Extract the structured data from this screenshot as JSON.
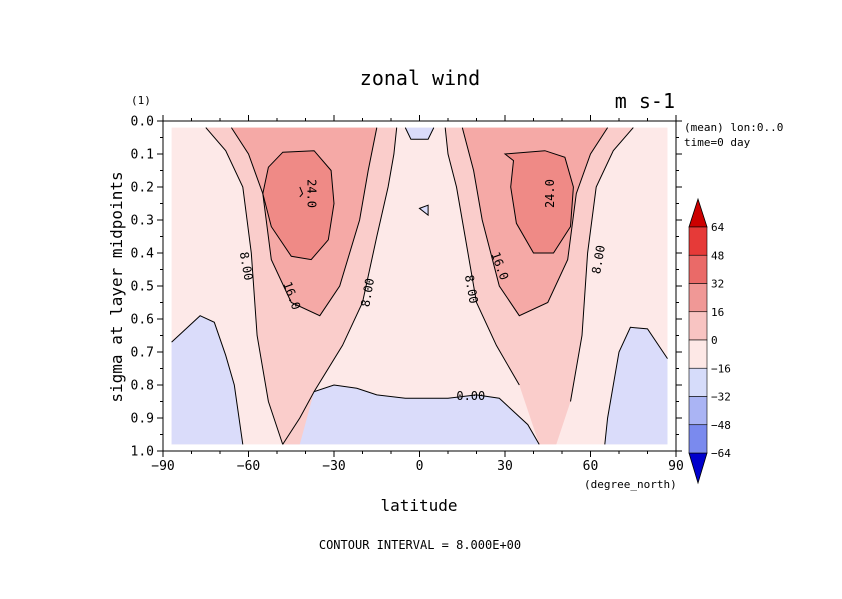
{
  "chart_data": {
    "type": "contour",
    "title": "zonal wind",
    "units": "m s-1",
    "y_unit_label": "(1)",
    "xlabel": "latitude",
    "x_unit_label": "(degree_north)",
    "ylabel": "sigma at layer midpoints",
    "annotations": [
      "(mean) lon:0..0",
      "time=0 day"
    ],
    "contour_interval_text": "CONTOUR INTERVAL = 8.000E+00",
    "xlim": [
      -90,
      90
    ],
    "ylim": [
      0.0,
      1.0
    ],
    "y_inverted": true,
    "x_ticks": [
      -90,
      -60,
      -30,
      0,
      30,
      60,
      90
    ],
    "x_tick_labels": [
      "−90",
      "−60",
      "−30",
      "0",
      "30",
      "60",
      "90"
    ],
    "y_ticks": [
      0.0,
      0.1,
      0.2,
      0.3,
      0.4,
      0.5,
      0.6,
      0.7,
      0.8,
      0.9,
      1.0
    ],
    "y_tick_labels": [
      "0.0",
      "0.1",
      "0.2",
      "0.3",
      "0.4",
      "0.5",
      "0.6",
      "0.7",
      "0.8",
      "0.9",
      "1.0"
    ],
    "data_x_range": [
      -87,
      87
    ],
    "data_y_range": [
      0.02,
      0.98
    ],
    "contour_labels": [
      {
        "text": "24.0",
        "lat": -38,
        "sigma": 0.22,
        "rotate": 90
      },
      {
        "text": "8.00",
        "lat": -61,
        "sigma": 0.44,
        "rotate": 80
      },
      {
        "text": "16.0",
        "lat": -45,
        "sigma": 0.53,
        "rotate": 70
      },
      {
        "text": "8.00",
        "lat": -18,
        "sigma": 0.52,
        "rotate": -80
      },
      {
        "text": "0.00",
        "lat": 18,
        "sigma": 0.835,
        "rotate": 0
      },
      {
        "text": "8.00",
        "lat": 18,
        "sigma": 0.51,
        "rotate": 80
      },
      {
        "text": "16.0",
        "lat": 28,
        "sigma": 0.44,
        "rotate": 70
      },
      {
        "text": "24.0",
        "lat": 46,
        "sigma": 0.22,
        "rotate": -90
      },
      {
        "text": "8.00",
        "lat": 63,
        "sigma": 0.42,
        "rotate": -80
      }
    ],
    "colorbar": {
      "levels": [
        -64,
        -48,
        -32,
        -16,
        0,
        16,
        32,
        48,
        64
      ],
      "level_labels": [
        "−64",
        "−48",
        "−32",
        "−16",
        "0",
        "16",
        "32",
        "48",
        "64"
      ],
      "colors": [
        "#0000cc",
        "#2233dd",
        "#4a5ee6",
        "#7a8aee",
        "#aab4f4",
        "#d6dcfa",
        "#fde8e6",
        "#f8c4c2",
        "#f09896",
        "#ea6a68",
        "#e63a38",
        "#cc0000"
      ]
    },
    "fill_colors": {
      "neg": "#dadcfa",
      "low": "#fde9e8",
      "mid": "#facdcb",
      "high": "#f5a9a6",
      "top": "#ef8a86"
    }
  }
}
